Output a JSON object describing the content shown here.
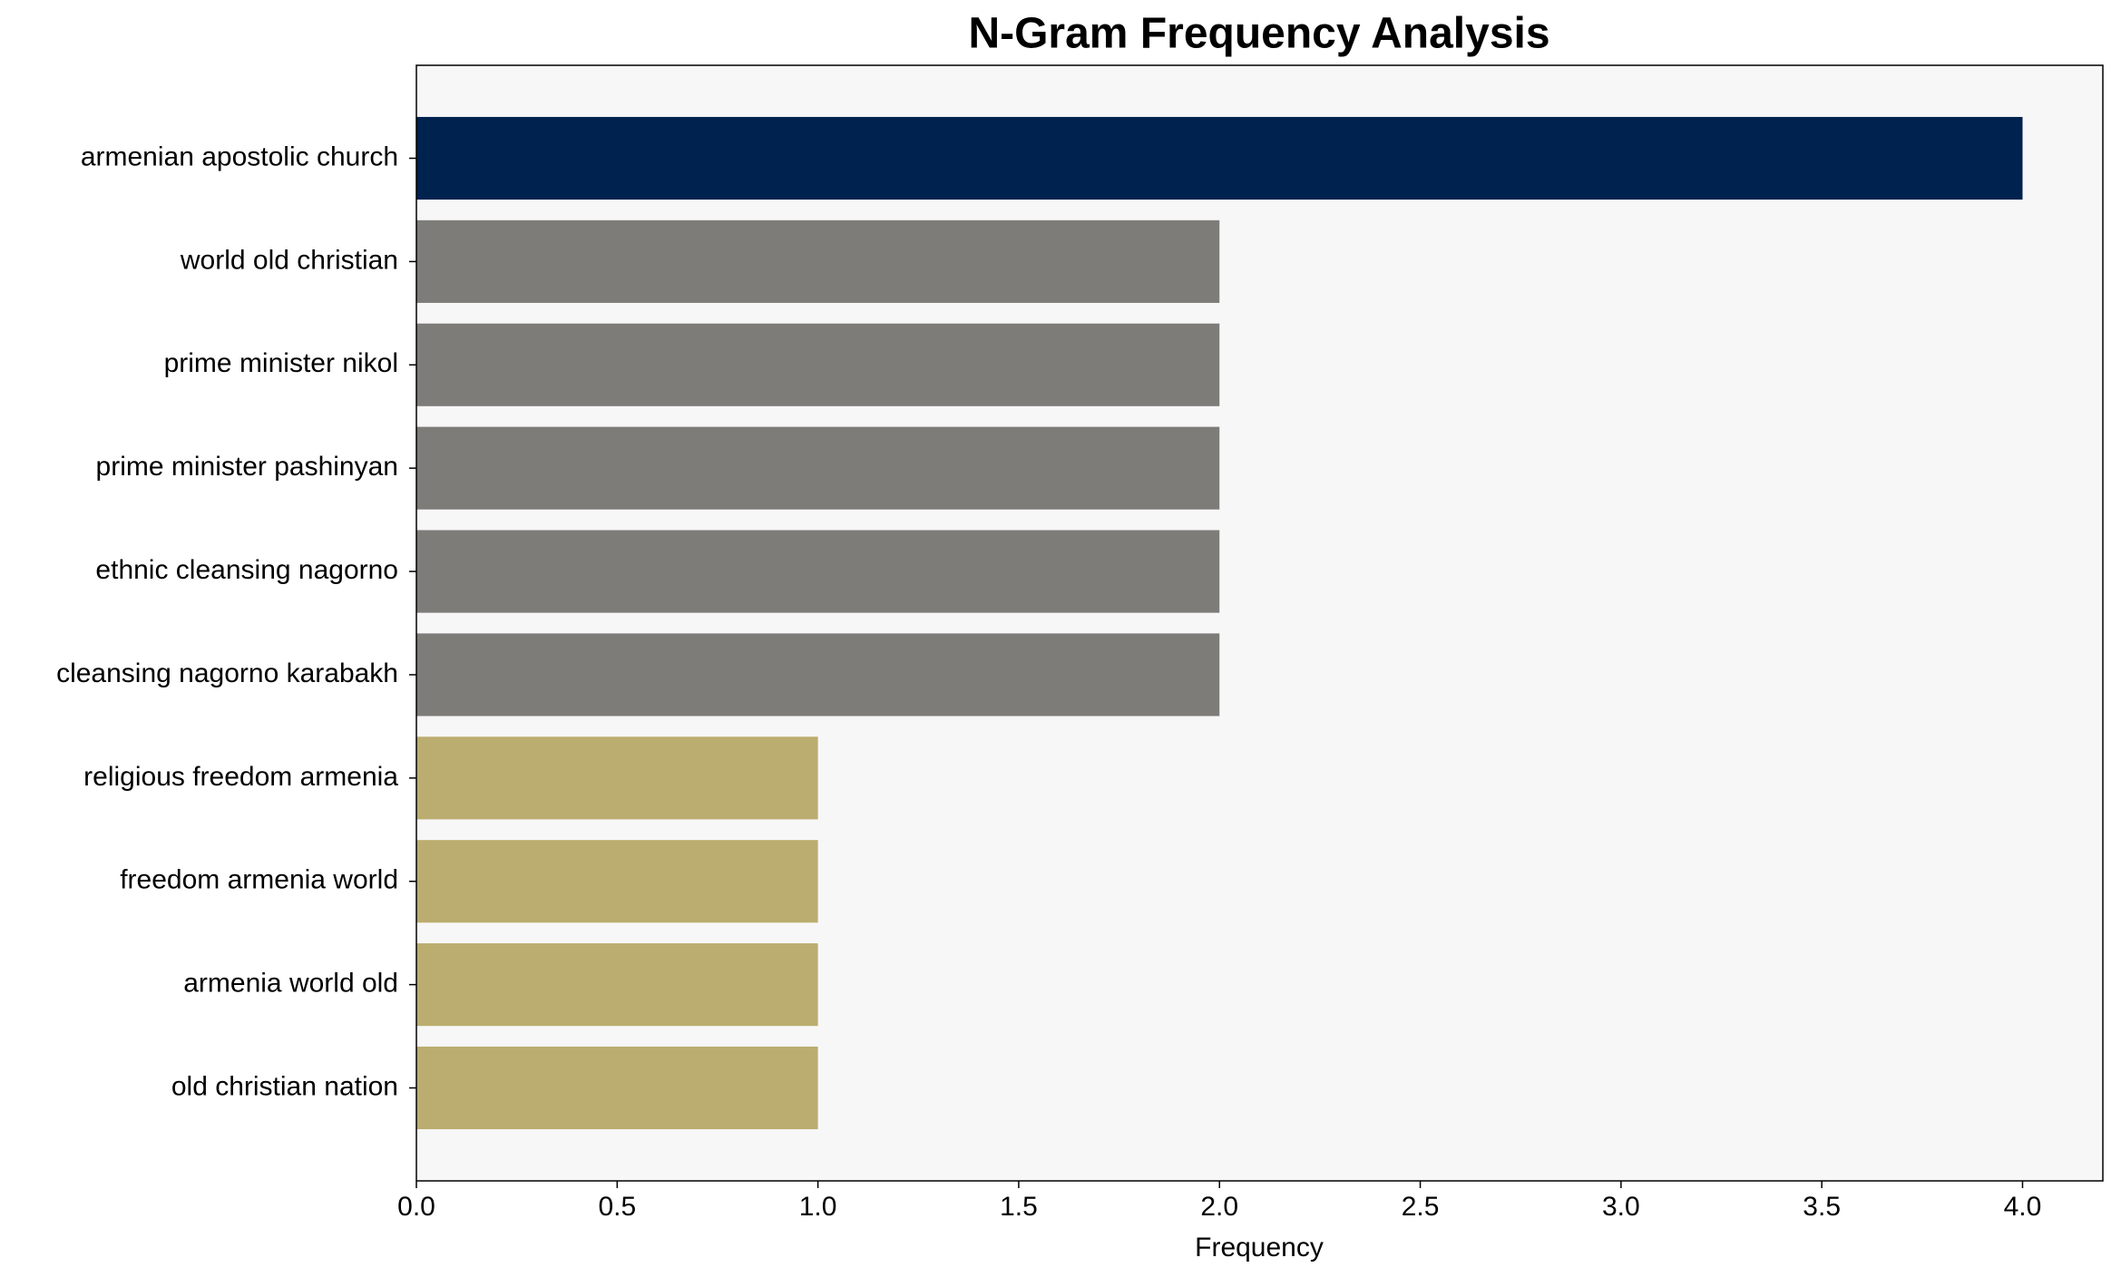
{
  "chart_data": {
    "type": "barh",
    "title": "N-Gram Frequency Analysis",
    "x_label": "Frequency",
    "categories": [
      "armenian apostolic church",
      "world old christian",
      "prime minister nikol",
      "prime minister pashinyan",
      "ethnic cleansing nagorno",
      "cleansing nagorno karabakh",
      "religious freedom armenia",
      "freedom armenia world",
      "armenia world old",
      "old christian nation"
    ],
    "values": [
      4,
      2,
      2,
      2,
      2,
      2,
      1,
      1,
      1,
      1
    ],
    "colors": [
      "#00224e",
      "#7d7c78",
      "#7d7c78",
      "#7d7c78",
      "#7d7c78",
      "#7d7c78",
      "#bbad6f",
      "#bbad6f",
      "#bbad6f",
      "#bbad6f"
    ],
    "xlim": [
      0,
      4.2
    ],
    "xticks": [
      {
        "value": 0,
        "label": "0.0"
      },
      0.5,
      {
        "value": 1,
        "label": "1.0"
      },
      1.5,
      {
        "value": 2,
        "label": "2.0"
      },
      2.5,
      {
        "value": 3,
        "label": "3.0"
      },
      3.5,
      {
        "value": 4,
        "label": "4.0"
      }
    ],
    "background": "#f7f7f7"
  }
}
